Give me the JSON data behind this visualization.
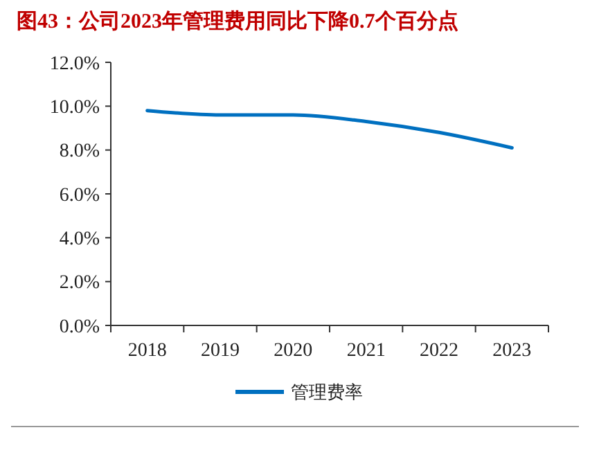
{
  "chart_data": {
    "type": "line",
    "title": "图43：公司2023年管理费用同比下降0.7个百分点",
    "categories": [
      "2018",
      "2019",
      "2020",
      "2021",
      "2022",
      "2023"
    ],
    "series": [
      {
        "name": "管理费率",
        "color": "#0070c0",
        "values": [
          9.8,
          9.6,
          9.6,
          9.3,
          8.8,
          8.1
        ]
      }
    ],
    "ylim": [
      0,
      12
    ],
    "yticks": [
      {
        "value": 0,
        "label": "0.0%"
      },
      {
        "value": 2,
        "label": "2.0%"
      },
      {
        "value": 4,
        "label": "4.0%"
      },
      {
        "value": 6,
        "label": "6.0%"
      },
      {
        "value": 8,
        "label": "8.0%"
      },
      {
        "value": 10,
        "label": "10.0%"
      },
      {
        "value": 12,
        "label": "12.0%"
      }
    ],
    "grid": false,
    "legend": "bottom",
    "marker": "none",
    "line_style": "solid"
  }
}
